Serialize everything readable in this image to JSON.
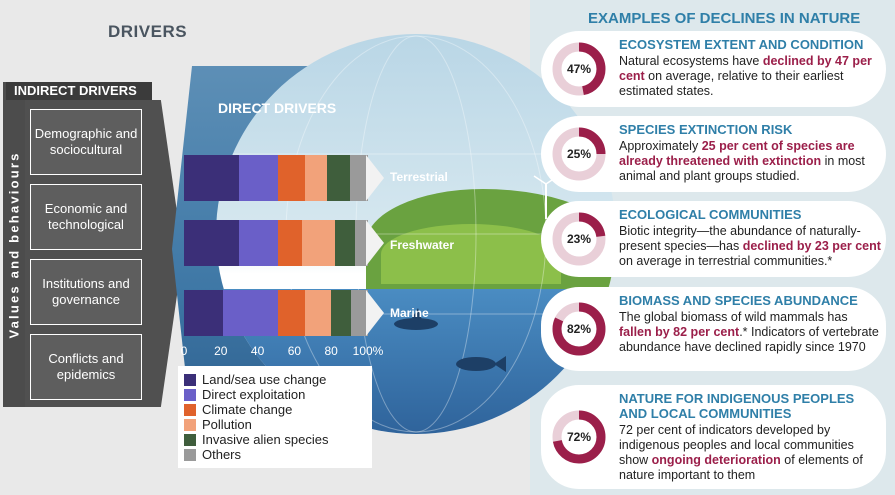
{
  "drivers_title": "DRIVERS",
  "values_behaviours": "Values and behaviours",
  "indirect": {
    "header": "INDIRECT DRIVERS",
    "items": [
      "Demographic and sociocultural",
      "Economic and technological",
      "Institutions and governance",
      "Conflicts and epidemics"
    ]
  },
  "direct": {
    "title": "DIRECT DRIVERS",
    "biomes": [
      "Terrestrial",
      "Freshwater",
      "Marine"
    ],
    "axis_ticks": [
      "0",
      "20",
      "40",
      "60",
      "80",
      "100%"
    ],
    "legend": [
      {
        "label": "Land/sea use change",
        "color": "#3b2f78"
      },
      {
        "label": "Direct exploitation",
        "color": "#6a5fc8"
      },
      {
        "label": "Climate change",
        "color": "#e0622b"
      },
      {
        "label": "Pollution",
        "color": "#f2a27a"
      },
      {
        "label": "Invasive alien species",
        "color": "#3f5e3c"
      },
      {
        "label": "Others",
        "color": "#9a9a9a"
      }
    ]
  },
  "chart_data": {
    "type": "bar",
    "orientation": "horizontal",
    "stacked": true,
    "categories": [
      "Terrestrial",
      "Freshwater",
      "Marine"
    ],
    "series": [
      {
        "name": "Land/sea use change",
        "values": [
          30,
          30,
          21
        ]
      },
      {
        "name": "Direct exploitation",
        "values": [
          21,
          21,
          30
        ]
      },
      {
        "name": "Climate change",
        "values": [
          15,
          13,
          15
        ]
      },
      {
        "name": "Pollution",
        "values": [
          12,
          18,
          14
        ]
      },
      {
        "name": "Invasive alien species",
        "values": [
          12,
          11,
          11
        ]
      },
      {
        "name": "Others",
        "values": [
          10,
          7,
          9
        ]
      }
    ],
    "xlim": [
      0,
      100
    ]
  },
  "examples_title": "EXAMPLES OF DECLINES IN NATURE",
  "examples": [
    {
      "percent": 47,
      "label": "47%",
      "title": "ECOSYSTEM EXTENT AND CONDITION",
      "body_pre": "Natural ecosystems have ",
      "body_hl": "declined by 47 per cent",
      "body_post": " on average, relative to their earliest estimated states."
    },
    {
      "percent": 25,
      "label": "25%",
      "title": "SPECIES EXTINCTION RISK",
      "body_pre": "Approximately ",
      "body_hl": "25 per cent of species are already threatened with extinction",
      "body_post": " in most animal and plant groups studied."
    },
    {
      "percent": 23,
      "label": "23%",
      "title": "ECOLOGICAL COMMUNITIES",
      "body_pre": "Biotic integrity—the abundance of naturally-present species—has ",
      "body_hl": "declined by 23 per cent",
      "body_post": " on average in terrestrial communities.*"
    },
    {
      "percent": 82,
      "label": "82%",
      "title": "BIOMASS AND SPECIES ABUNDANCE",
      "body_pre": "The global biomass of wild mammals has ",
      "body_hl": "fallen by 82 per cent",
      "body_post": ".* Indicators of vertebrate abundance have declined rapidly since 1970"
    },
    {
      "percent": 72,
      "label": "72%",
      "title": "NATURE FOR INDIGENOUS PEOPLES AND LOCAL COMMUNITIES",
      "body_pre": "72 per cent of indicators developed by indigenous peoples and local communities show ",
      "body_hl": "ongoing deterioration",
      "body_post": " of elements of nature important to them"
    }
  ],
  "colors": {
    "accent_title": "#2f7fa8",
    "donut_fill": "#9b1f4a",
    "donut_track": "#e9cfd8"
  }
}
